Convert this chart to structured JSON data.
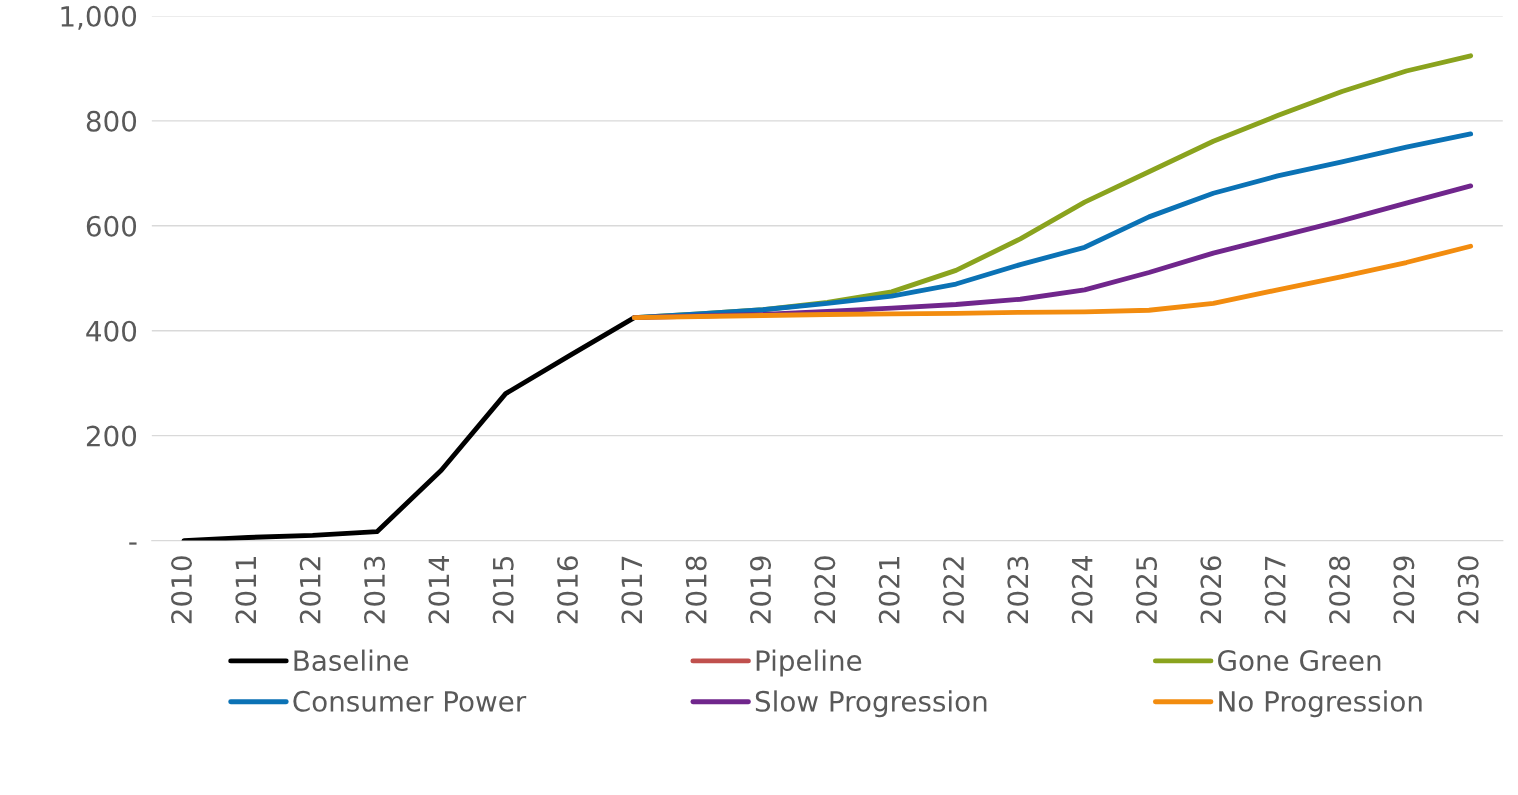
{
  "chart_data": {
    "type": "line",
    "categories": [
      "2010",
      "2011",
      "2012",
      "2013",
      "2014",
      "2015",
      "2016",
      "2017",
      "2018",
      "2019",
      "2020",
      "2021",
      "2022",
      "2023",
      "2024",
      "2025",
      "2026",
      "2027",
      "2028",
      "2029",
      "2030"
    ],
    "ylim": [
      0,
      1000
    ],
    "yticks": [
      {
        "value": 0,
        "label": "-"
      },
      200,
      400,
      600,
      800,
      {
        "value": 1000,
        "label": "1,000"
      }
    ],
    "grid": "y",
    "legend": "bottom",
    "marker": "none",
    "line_style": "solid",
    "series": [
      {
        "name": "Baseline",
        "color": "#000000",
        "values": [
          0,
          6,
          10,
          17,
          134,
          280,
          353,
          425,
          null,
          null,
          null,
          null,
          null,
          null,
          null,
          null,
          null,
          null,
          null,
          null,
          null
        ]
      },
      {
        "name": "Pipeline",
        "color": "#c0504d",
        "values": [
          null,
          null,
          null,
          null,
          null,
          null,
          null,
          null,
          null,
          null,
          null,
          null,
          null,
          null,
          null,
          null,
          null,
          null,
          null,
          null,
          null
        ]
      },
      {
        "name": "Gone Green",
        "color": "#8aa31e",
        "values": [
          null,
          null,
          null,
          null,
          null,
          null,
          null,
          425,
          432,
          440,
          454,
          474,
          515,
          575,
          645,
          703,
          761,
          810,
          856,
          895,
          924
        ]
      },
      {
        "name": "Consumer Power",
        "color": "#0b72b5",
        "values": [
          null,
          null,
          null,
          null,
          null,
          null,
          null,
          425,
          432,
          440,
          452,
          466,
          489,
          526,
          559,
          617,
          662,
          695,
          722,
          750,
          775
        ]
      },
      {
        "name": "Slow Progression",
        "color": "#70268c",
        "values": [
          null,
          null,
          null,
          null,
          null,
          null,
          null,
          425,
          428,
          431,
          437,
          443,
          450,
          460,
          478,
          511,
          548,
          579,
          610,
          643,
          676
        ]
      },
      {
        "name": "No Progression",
        "color": "#f28c0f",
        "values": [
          null,
          null,
          null,
          null,
          null,
          null,
          null,
          425,
          427,
          429,
          431,
          432,
          433,
          435,
          436,
          439,
          452,
          478,
          503,
          530,
          561
        ]
      }
    ]
  }
}
